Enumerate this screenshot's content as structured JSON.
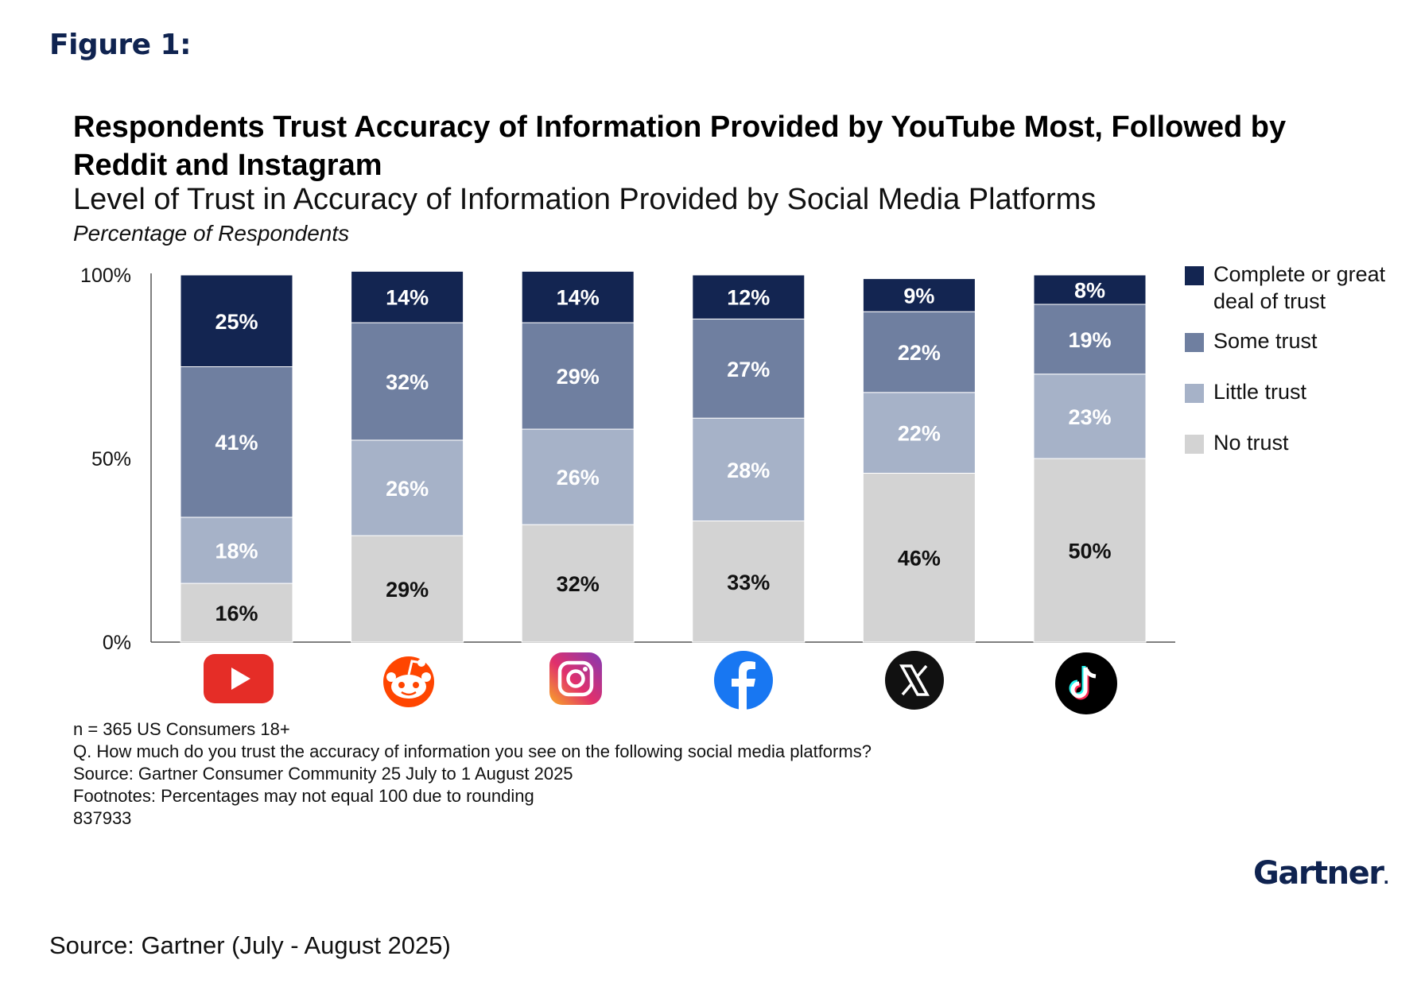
{
  "figure_label": "Figure 1:",
  "chart_data": {
    "type": "bar",
    "stacked": true,
    "title": "Respondents Trust Accuracy of Information Provided by YouTube Most, Followed by Reddit and Instagram",
    "subtitle": "Level of Trust in Accuracy of Information Provided by Social Media Platforms",
    "unit_label": "Percentage of Respondents",
    "categories": [
      "YouTube",
      "Reddit",
      "Instagram",
      "Facebook",
      "X",
      "TikTok"
    ],
    "category_icons": [
      "youtube-icon",
      "reddit-icon",
      "instagram-icon",
      "facebook-icon",
      "x-icon",
      "tiktok-icon"
    ],
    "y_ticks": [
      "0%",
      "50%",
      "100%"
    ],
    "ylim": [
      0,
      100
    ],
    "series": [
      {
        "name": "No trust",
        "color": "#d3d3d3",
        "label_color": "#111111",
        "values": [
          16,
          29,
          32,
          33,
          46,
          50
        ]
      },
      {
        "name": "Little trust",
        "color": "#a6b2c8",
        "label_color": "#ffffff",
        "values": [
          18,
          26,
          26,
          28,
          22,
          23
        ]
      },
      {
        "name": "Some trust",
        "color": "#6f7fa0",
        "label_color": "#ffffff",
        "values": [
          41,
          32,
          29,
          27,
          22,
          19
        ]
      },
      {
        "name": "Complete or great deal of trust",
        "color": "#132551",
        "label_color": "#ffffff",
        "values": [
          25,
          14,
          14,
          12,
          9,
          8
        ]
      }
    ],
    "legend_position": "right",
    "grid": false
  },
  "legend": [
    {
      "label": "Complete or great deal of trust",
      "color": "#132551"
    },
    {
      "label": "Some trust",
      "color": "#6f7fa0"
    },
    {
      "label": "Little trust",
      "color": "#a6b2c8"
    },
    {
      "label": "No trust",
      "color": "#d3d3d3"
    }
  ],
  "notes": [
    "n = 365 US Consumers 18+",
    "Q. How much do you trust the accuracy of information you see on the following social media platforms?",
    "Source: Gartner Consumer Community 25 July to 1 August 2025",
    "Footnotes: Percentages may not equal 100 due to rounding",
    "837933"
  ],
  "brand": "Gartner",
  "source": "Source: Gartner (July - August 2025)"
}
